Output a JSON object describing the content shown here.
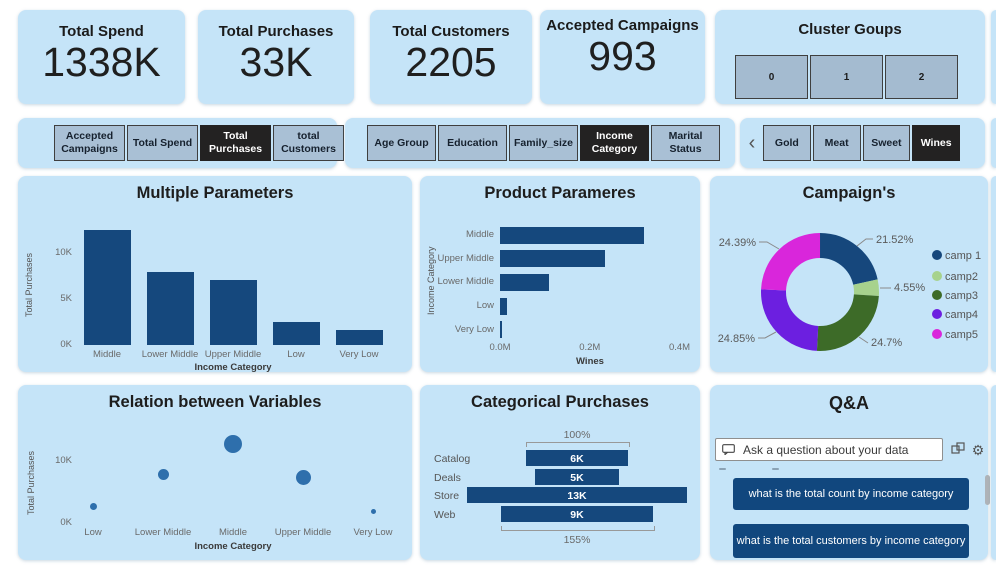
{
  "page": {
    "background": "#ffffff",
    "card_bg": "#c5e4f8"
  },
  "kpis": [
    {
      "label": "Total Spend",
      "value": "1338K"
    },
    {
      "label": "Total Purchases",
      "value": "33K"
    },
    {
      "label": "Total Customers",
      "value": "2205"
    },
    {
      "label": "Accepted Campaigns",
      "value": "993"
    }
  ],
  "cluster": {
    "title": "Cluster Goups",
    "buttons": [
      "0",
      "1",
      "2"
    ]
  },
  "slicers": {
    "measures": {
      "items": [
        "Accepted Campaigns",
        "Total Spend",
        "Total Purchases",
        "total Customers"
      ],
      "selected_index": 2
    },
    "dimensions": {
      "items": [
        "Age Group",
        "Education",
        "Family_size",
        "Income Category",
        "Marital Status"
      ],
      "selected_index": 3
    },
    "products": {
      "chevron": "‹",
      "items": [
        "Gold",
        "Meat",
        "Sweet",
        "Wines"
      ],
      "selected_index": 3
    }
  },
  "colors": {
    "bar": "#15487d",
    "scatter_dot": "#2e6fac",
    "slicer_button_bg": "#a9c0d5",
    "selected_button_bg": "#232222",
    "suggestion_bg": "#11477e",
    "card_bg": "#c5e4f8"
  },
  "glyphs": {
    "gear": "⚙"
  },
  "icons": {
    "qa_input": "speech-bubble",
    "qa_tools": [
      "convert-visual",
      "settings-gear"
    ],
    "products_scroll": "chevron-left"
  },
  "chart_data": [
    {
      "type": "bar",
      "title": "Multiple Parameters",
      "xlabel": "Income Category",
      "ylabel": "Total Purchases",
      "categories": [
        "Middle",
        "Lower Middle",
        "Upper Middle",
        "Low",
        "Very Low"
      ],
      "values": [
        12500,
        7900,
        7000,
        2500,
        1600
      ],
      "yticks": [
        {
          "label": "0K",
          "value": 0
        },
        {
          "label": "5K",
          "value": 5000
        },
        {
          "label": "10K",
          "value": 10000
        }
      ],
      "ylim": [
        0,
        13000
      ],
      "grid": false
    },
    {
      "type": "bar-horizontal",
      "title": "Product Parameres",
      "xlabel": "Wines",
      "ylabel": "Income Category",
      "categories": [
        "Middle",
        "Upper Middle",
        "Lower Middle",
        "Low",
        "Very Low"
      ],
      "values": [
        0.32,
        0.235,
        0.11,
        0.015,
        0.004
      ],
      "unit": "M",
      "xticks": [
        {
          "label": "0.0M",
          "value": 0
        },
        {
          "label": "0.2M",
          "value": 0.2
        },
        {
          "label": "0.4M",
          "value": 0.4
        }
      ],
      "xlim": [
        0,
        0.41
      ],
      "grid": false
    },
    {
      "type": "donut",
      "title": "Campaign's",
      "legend_position": "right",
      "slices": [
        {
          "name": "camp 1",
          "pct": 21.52,
          "label": "21.52%",
          "color": "#16477c"
        },
        {
          "name": "camp2",
          "pct": 4.55,
          "label": "4.55%",
          "color": "#a7d28d"
        },
        {
          "name": "camp3",
          "pct": 24.7,
          "label": "24.7%",
          "color": "#3d6b28"
        },
        {
          "name": "camp4",
          "pct": 24.85,
          "label": "24.85%",
          "color": "#6c1fe0"
        },
        {
          "name": "camp5",
          "pct": 24.39,
          "label": "24.39%",
          "color": "#d926db"
        }
      ]
    },
    {
      "type": "scatter",
      "title": "Relation between Variables",
      "xlabel": "Income Category",
      "ylabel": "Total Purchases",
      "categories": [
        "Low",
        "Lower Middle",
        "Middle",
        "Upper Middle",
        "Very Low"
      ],
      "points": [
        {
          "category": "Low",
          "value": 2700,
          "size": 7
        },
        {
          "category": "Lower Middle",
          "value": 7900,
          "size": 11
        },
        {
          "category": "Middle",
          "value": 12700,
          "size": 18
        },
        {
          "category": "Upper Middle",
          "value": 7300,
          "size": 15
        },
        {
          "category": "Very Low",
          "value": 1800,
          "size": 5
        }
      ],
      "yticks": [
        {
          "label": "0K",
          "value": 0
        },
        {
          "label": "10K",
          "value": 10000
        }
      ],
      "ylim": [
        0,
        14200
      ],
      "grid": false
    },
    {
      "type": "funnel",
      "title": "Categorical Purchases",
      "categories": [
        "Catalog",
        "Deals",
        "Store",
        "Web"
      ],
      "values": [
        6000,
        5000,
        13000,
        9000
      ],
      "bar_labels": [
        "6K",
        "5K",
        "13K",
        "9K"
      ],
      "top_bracket_label": "100%",
      "bottom_bracket_label": "155%"
    }
  ],
  "qa": {
    "title": "Q&A",
    "input_placeholder": "Ask a question about your data",
    "suggestions": [
      "what is the total count by income category",
      "what is the total customers by income category"
    ]
  }
}
